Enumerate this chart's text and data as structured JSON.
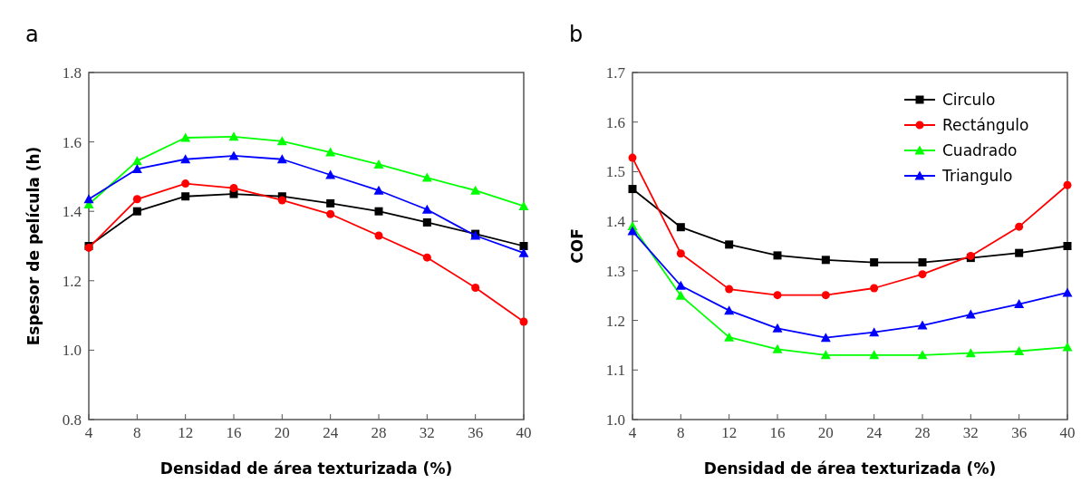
{
  "chart_data": [
    {
      "type": "line",
      "title": "a",
      "xlabel": "Densidad de área texturizada (%)",
      "ylabel": "Espesor de película (h)",
      "x": [
        4,
        8,
        12,
        16,
        20,
        24,
        28,
        32,
        36,
        40
      ],
      "xlim": [
        4,
        40
      ],
      "xticks": [
        4,
        8,
        12,
        16,
        20,
        24,
        28,
        32,
        36,
        40
      ],
      "ylim": [
        0.8,
        1.8
      ],
      "yticks": [
        0.8,
        {
          "value": 1.0,
          "label": "1.0"
        },
        1.2,
        1.4,
        1.6,
        1.8
      ],
      "legend": false,
      "series": [
        {
          "color": "#000000",
          "marker": "square",
          "values": [
            1.3,
            1.4,
            1.443,
            1.45,
            1.443,
            1.423,
            1.4,
            1.368,
            1.335,
            1.3
          ]
        },
        {
          "color": "#ff0000",
          "marker": "circle",
          "values": [
            1.295,
            1.435,
            1.48,
            1.467,
            1.432,
            1.392,
            1.33,
            1.267,
            1.18,
            1.082
          ]
        },
        {
          "color": "#00ff00",
          "marker": "triangle",
          "values": [
            1.42,
            1.545,
            1.612,
            1.615,
            1.602,
            1.57,
            1.535,
            1.497,
            1.46,
            1.415
          ]
        },
        {
          "color": "#0000ff",
          "marker": "triangle",
          "values": [
            1.435,
            1.522,
            1.55,
            1.56,
            1.55,
            1.505,
            1.46,
            1.405,
            1.33,
            1.28
          ]
        }
      ]
    },
    {
      "type": "line",
      "title": "b",
      "xlabel": "Densidad de área texturizada (%)",
      "ylabel": "COF",
      "x": [
        4,
        8,
        12,
        16,
        20,
        24,
        28,
        32,
        36,
        40
      ],
      "xlim": [
        4,
        40
      ],
      "xticks": [
        4,
        8,
        12,
        16,
        20,
        24,
        28,
        32,
        36,
        40
      ],
      "ylim": [
        1.0,
        1.7
      ],
      "yticks": [
        {
          "value": 1.0,
          "label": "1.0"
        },
        1.1,
        1.2,
        1.3,
        1.4,
        1.5,
        1.6,
        1.7
      ],
      "legend": "top right",
      "series": [
        {
          "name": "Circulo",
          "color": "#000000",
          "marker": "square",
          "values": [
            1.465,
            1.388,
            1.353,
            1.331,
            1.322,
            1.317,
            1.317,
            1.326,
            1.336,
            1.35
          ]
        },
        {
          "name": "Rectángulo",
          "color": "#ff0000",
          "marker": "circle",
          "values": [
            1.528,
            1.335,
            1.263,
            1.251,
            1.251,
            1.265,
            1.293,
            1.33,
            1.389,
            1.473
          ]
        },
        {
          "name": "Cuadrado",
          "color": "#00ff00",
          "marker": "triangle",
          "values": [
            1.39,
            1.25,
            1.166,
            1.142,
            1.13,
            1.13,
            1.13,
            1.134,
            1.138,
            1.146
          ]
        },
        {
          "name": "Triangulo",
          "color": "#0000ff",
          "marker": "triangle",
          "values": [
            1.38,
            1.27,
            1.22,
            1.184,
            1.165,
            1.176,
            1.19,
            1.212,
            1.233,
            1.256
          ]
        }
      ]
    }
  ]
}
